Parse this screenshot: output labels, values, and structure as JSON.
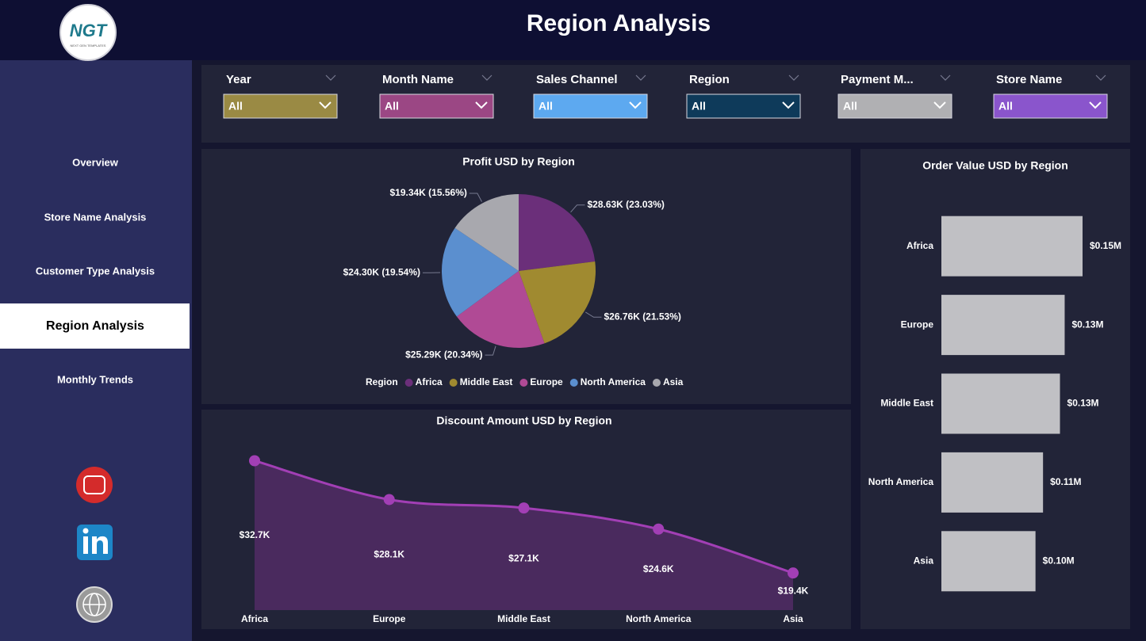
{
  "header": {
    "title": "Region Analysis",
    "logo": "NGT",
    "logo_subtitle": "NEXT GEN TEMPLATES"
  },
  "nav": {
    "items": [
      "Overview",
      "Store Name Analysis",
      "Customer Type Analysis",
      "Region Analysis",
      "Monthly Trends"
    ],
    "selected": 3
  },
  "filters": [
    {
      "label": "Year",
      "value": "All",
      "color": "#9a8a44"
    },
    {
      "label": "Month Name",
      "value": "All",
      "color": "#9b4784"
    },
    {
      "label": "Sales Channel",
      "value": "All",
      "color": "#5da9f0"
    },
    {
      "label": "Region",
      "value": "All",
      "color": "#0e3a5a"
    },
    {
      "label": "Payment M...",
      "value": "All",
      "color": "#b0b0b3"
    },
    {
      "label": "Store Name",
      "value": "All",
      "color": "#8a55cc"
    }
  ],
  "chart_data": [
    {
      "type": "pie",
      "title": "Profit USD by Region",
      "legend_title": "Region",
      "categories": [
        "Africa",
        "Middle East",
        "Europe",
        "North America",
        "Asia"
      ],
      "values": [
        28.63,
        26.76,
        25.29,
        24.3,
        19.34
      ],
      "value_labels": [
        "$28.63K (23.03%)",
        "$26.76K (21.53%)",
        "$25.29K (20.34%)",
        "$24.30K (19.54%)",
        "$19.34K (15.56%)"
      ],
      "colors": [
        "#6b2f7a",
        "#a08a30",
        "#b04a95",
        "#5b8fcf",
        "#a8a8ae"
      ]
    },
    {
      "type": "area",
      "title": "Discount Amount USD by Region",
      "categories": [
        "Africa",
        "Europe",
        "Middle East",
        "North America",
        "Asia"
      ],
      "values": [
        32.7,
        28.1,
        27.1,
        24.6,
        19.4
      ],
      "value_labels": [
        "$32.7K",
        "$28.1K",
        "$27.1K",
        "$24.6K",
        "$19.4K"
      ],
      "ylim": [
        15,
        35
      ],
      "color": "#a23fb5",
      "fill": "#4a2a5e"
    },
    {
      "type": "bar",
      "orientation": "horizontal",
      "title": "Order Value USD by Region",
      "categories": [
        "Africa",
        "Europe",
        "Middle East",
        "North America",
        "Asia"
      ],
      "values": [
        0.15,
        0.131,
        0.126,
        0.108,
        0.1
      ],
      "value_labels": [
        "$0.15M",
        "$0.13M",
        "$0.13M",
        "$0.11M",
        "$0.10M"
      ],
      "xlim": [
        0,
        0.18
      ],
      "color": "#c0c0c4"
    }
  ]
}
